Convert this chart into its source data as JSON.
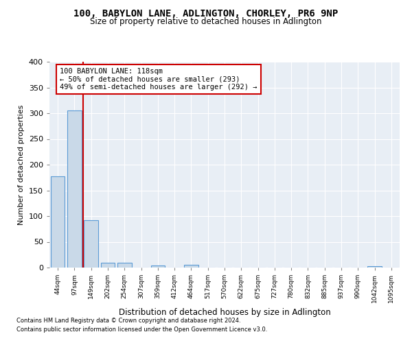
{
  "title": "100, BABYLON LANE, ADLINGTON, CHORLEY, PR6 9NP",
  "subtitle": "Size of property relative to detached houses in Adlington",
  "xlabel": "Distribution of detached houses by size in Adlington",
  "ylabel": "Number of detached properties",
  "bin_labels": [
    "44sqm",
    "97sqm",
    "149sqm",
    "202sqm",
    "254sqm",
    "307sqm",
    "359sqm",
    "412sqm",
    "464sqm",
    "517sqm",
    "570sqm",
    "622sqm",
    "675sqm",
    "727sqm",
    "780sqm",
    "832sqm",
    "885sqm",
    "937sqm",
    "990sqm",
    "1042sqm",
    "1095sqm"
  ],
  "bar_values": [
    178,
    305,
    92,
    9,
    10,
    0,
    4,
    0,
    5,
    0,
    0,
    0,
    0,
    0,
    0,
    0,
    0,
    0,
    0,
    3,
    0
  ],
  "bar_color": "#c9d9e8",
  "bar_edge_color": "#5b9bd5",
  "vertical_line_x": 1.5,
  "vertical_line_color": "#cc0000",
  "annotation_line1": "100 BABYLON LANE: 118sqm",
  "annotation_line2": "← 50% of detached houses are smaller (293)",
  "annotation_line3": "49% of semi-detached houses are larger (292) →",
  "annotation_box_color": "#ffffff",
  "annotation_box_edge": "#cc0000",
  "ylim": [
    0,
    400
  ],
  "yticks": [
    0,
    50,
    100,
    150,
    200,
    250,
    300,
    350,
    400
  ],
  "footer1": "Contains HM Land Registry data © Crown copyright and database right 2024.",
  "footer2": "Contains public sector information licensed under the Open Government Licence v3.0.",
  "plot_bg_color": "#e8eef5"
}
